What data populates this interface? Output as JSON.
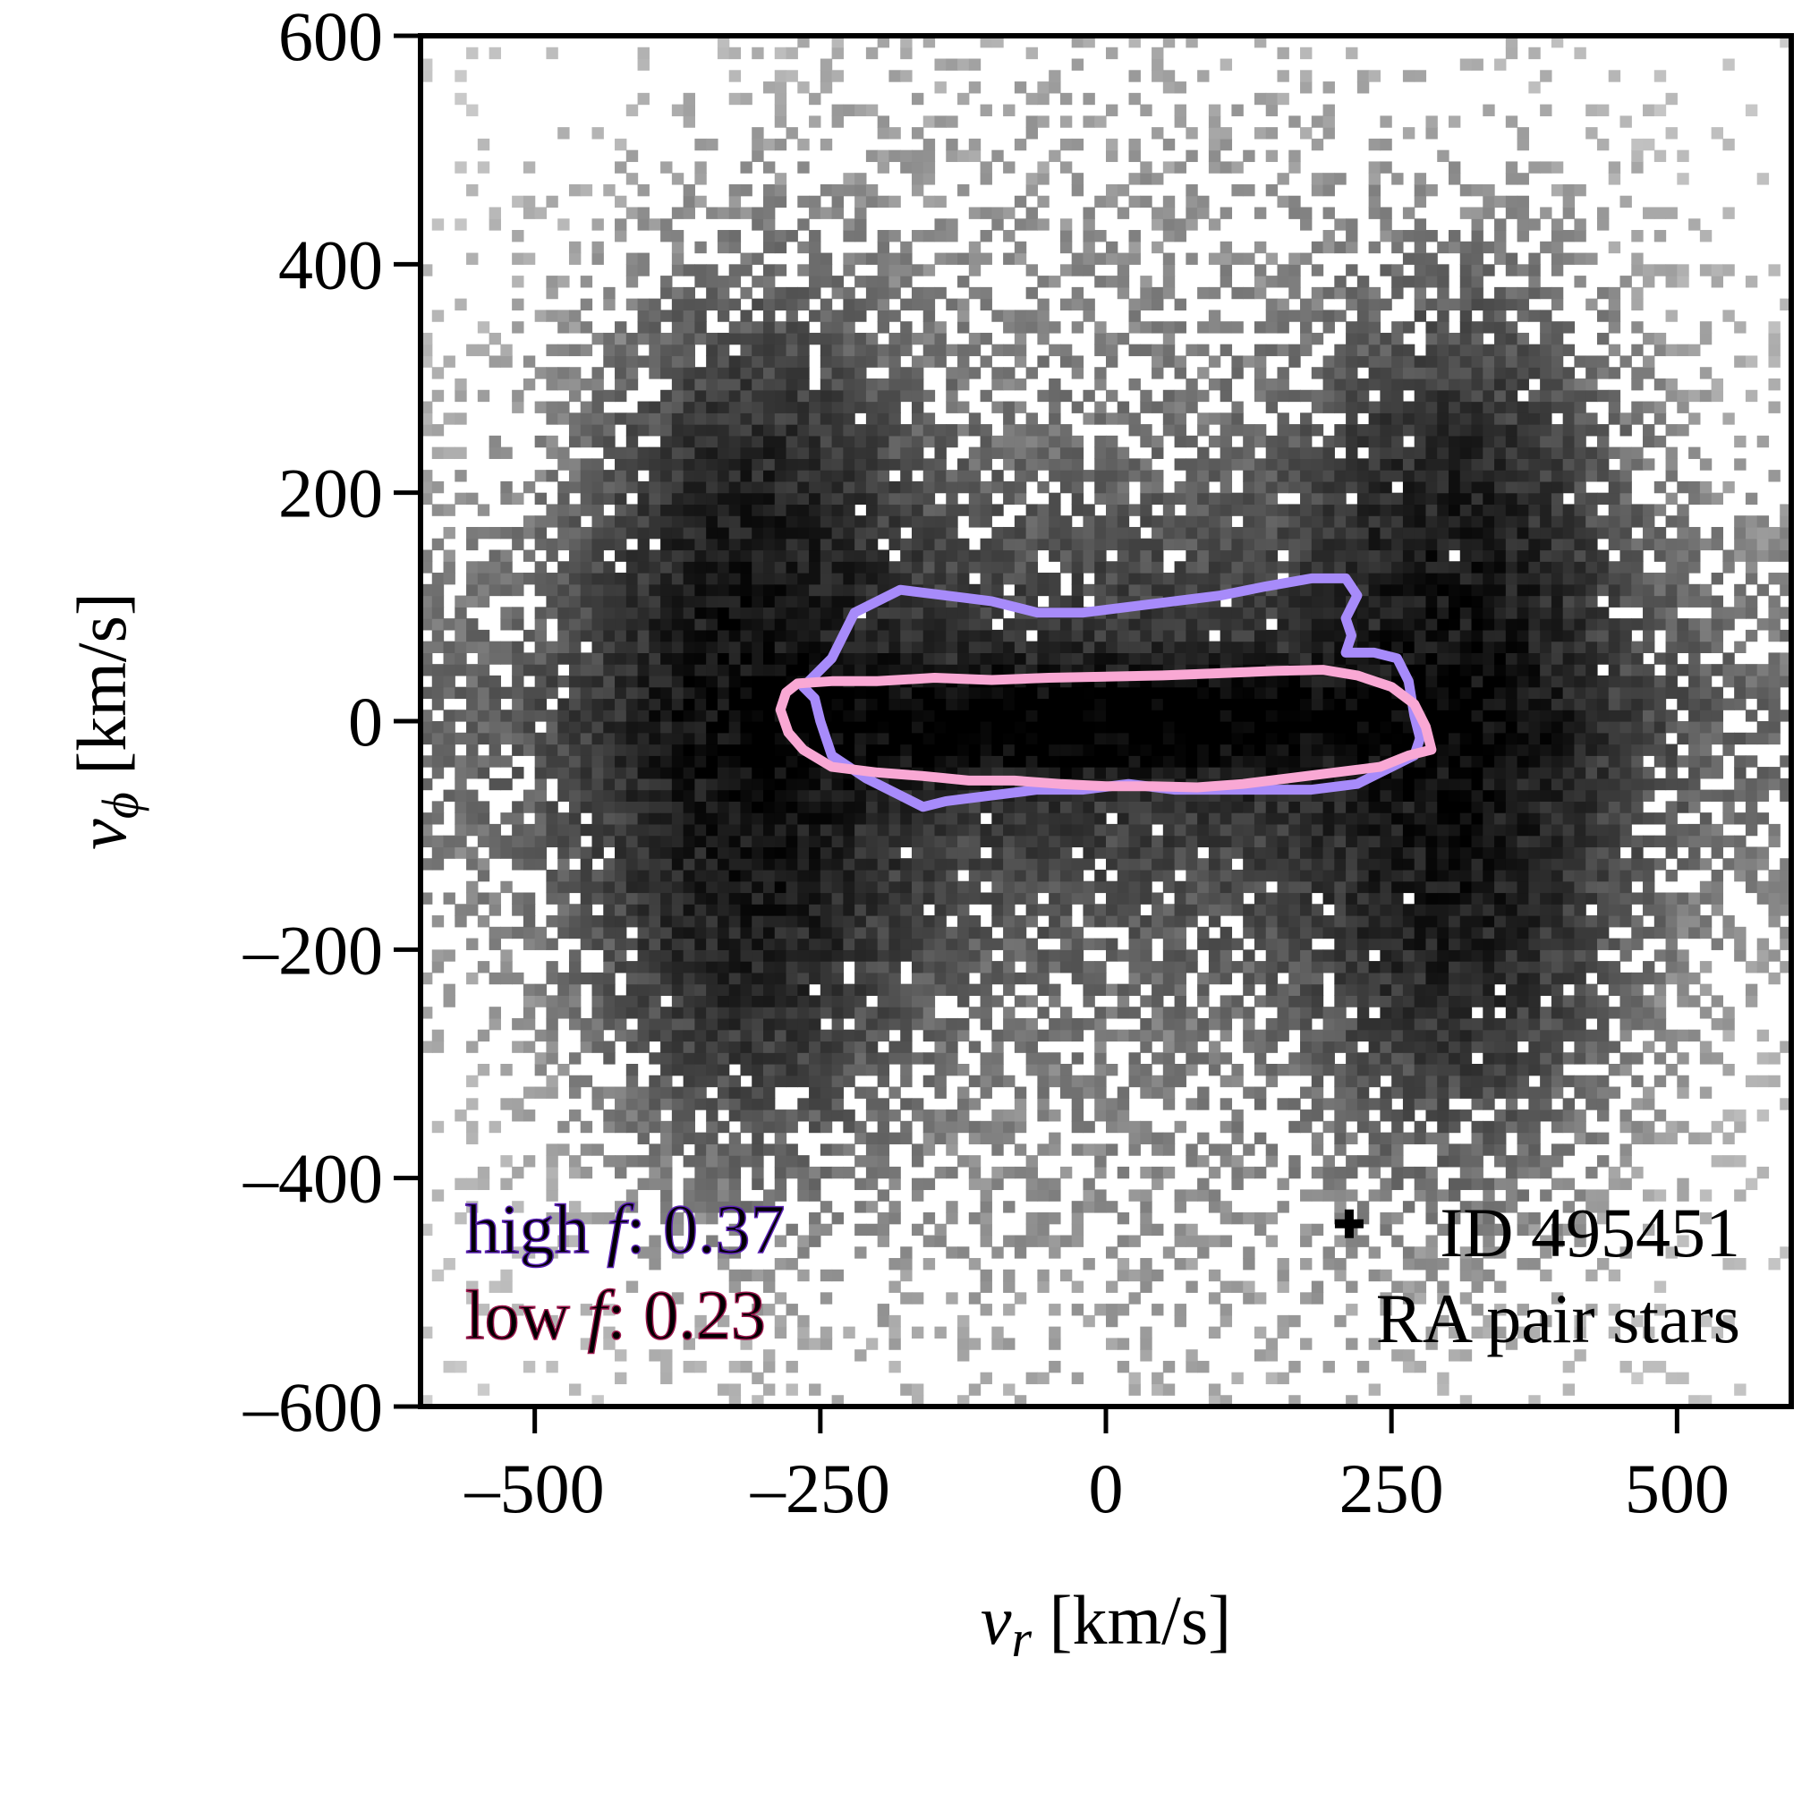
{
  "chart_data": {
    "type": "heatmap",
    "xlabel": {
      "var": "v",
      "sub": "r",
      "unit": " [km/s]"
    },
    "ylabel": {
      "var": "v",
      "sub": "ϕ",
      "unit": " [km/s]"
    },
    "xlim": [
      -600,
      600
    ],
    "ylim": [
      -600,
      600
    ],
    "xticks": [
      -500,
      -250,
      0,
      250,
      500
    ],
    "yticks": [
      -600,
      -400,
      -200,
      0,
      200,
      400,
      600
    ],
    "xtick_labels": [
      "–500",
      "–250",
      "0",
      "250",
      "500"
    ],
    "ytick_labels": [
      "–600",
      "–400",
      "–200",
      "0",
      "200",
      "400",
      "600"
    ],
    "histogram": {
      "bin_width_kms": 10,
      "colormap": "Greys",
      "density_model": "core at v_phi≈0 spanning |v_r|<300, two tilted lobes reaching toward (±330, ±200), sparse halo out to ±600",
      "components": [
        {
          "name_hint": "core",
          "cx": 0,
          "cy": 0,
          "sx": 190,
          "sy": 30,
          "amp": 1.0
        },
        {
          "cx": -310,
          "cy": 150,
          "sx": 80,
          "sy": 130,
          "amp": 0.5
        },
        {
          "cx": -310,
          "cy": -150,
          "sx": 80,
          "sy": 130,
          "amp": 0.5
        },
        {
          "cx": 310,
          "cy": 150,
          "sx": 80,
          "sy": 130,
          "amp": 0.5
        },
        {
          "cx": 310,
          "cy": -150,
          "sx": 80,
          "sy": 130,
          "amp": 0.5
        },
        {
          "cx": 0,
          "cy": 0,
          "sx": 380,
          "sy": 110,
          "amp": 0.3
        },
        {
          "cx": 0,
          "cy": 0,
          "sx": 330,
          "sy": 330,
          "amp": 0.12
        }
      ]
    },
    "contours": [
      {
        "label": "high ",
        "f_symbol": "f",
        "value_text": ": 0.37",
        "color": "#a78bfa",
        "points": [
          [
            -240,
            55
          ],
          [
            -220,
            95
          ],
          [
            -180,
            115
          ],
          [
            -140,
            110
          ],
          [
            -100,
            105
          ],
          [
            -60,
            95
          ],
          [
            -20,
            95
          ],
          [
            20,
            100
          ],
          [
            60,
            105
          ],
          [
            100,
            110
          ],
          [
            140,
            118
          ],
          [
            180,
            125
          ],
          [
            210,
            125
          ],
          [
            220,
            110
          ],
          [
            210,
            90
          ],
          [
            215,
            75
          ],
          [
            210,
            60
          ],
          [
            235,
            60
          ],
          [
            255,
            55
          ],
          [
            265,
            35
          ],
          [
            270,
            5
          ],
          [
            275,
            -15
          ],
          [
            270,
            -30
          ],
          [
            250,
            -40
          ],
          [
            220,
            -55
          ],
          [
            180,
            -60
          ],
          [
            140,
            -60
          ],
          [
            100,
            -60
          ],
          [
            60,
            -60
          ],
          [
            20,
            -55
          ],
          [
            -20,
            -60
          ],
          [
            -60,
            -60
          ],
          [
            -100,
            -65
          ],
          [
            -140,
            -70
          ],
          [
            -160,
            -75
          ],
          [
            -180,
            -65
          ],
          [
            -210,
            -50
          ],
          [
            -240,
            -30
          ],
          [
            -250,
            0
          ],
          [
            -255,
            20
          ],
          [
            -265,
            30
          ]
        ]
      },
      {
        "label": "low ",
        "f_symbol": "f",
        "value_text": ": 0.23",
        "color": "#f9a8d4",
        "points": [
          [
            -280,
            25
          ],
          [
            -270,
            33
          ],
          [
            -240,
            35
          ],
          [
            -200,
            35
          ],
          [
            -150,
            38
          ],
          [
            -100,
            36
          ],
          [
            -50,
            38
          ],
          [
            0,
            39
          ],
          [
            50,
            40
          ],
          [
            100,
            42
          ],
          [
            150,
            44
          ],
          [
            190,
            45
          ],
          [
            220,
            40
          ],
          [
            250,
            30
          ],
          [
            270,
            15
          ],
          [
            280,
            -5
          ],
          [
            285,
            -25
          ],
          [
            265,
            -30
          ],
          [
            240,
            -40
          ],
          [
            200,
            -45
          ],
          [
            160,
            -50
          ],
          [
            120,
            -55
          ],
          [
            80,
            -58
          ],
          [
            40,
            -57
          ],
          [
            0,
            -57
          ],
          [
            -40,
            -55
          ],
          [
            -80,
            -52
          ],
          [
            -120,
            -52
          ],
          [
            -160,
            -48
          ],
          [
            -200,
            -45
          ],
          [
            -240,
            -40
          ],
          [
            -265,
            -25
          ],
          [
            -278,
            -10
          ],
          [
            -285,
            10
          ]
        ]
      }
    ],
    "marker": {
      "x": 213,
      "y": -440,
      "shape": "plus",
      "color": "#000000",
      "label": "ID 495451"
    },
    "annotation_text": "RA pair stars",
    "grid": false
  }
}
